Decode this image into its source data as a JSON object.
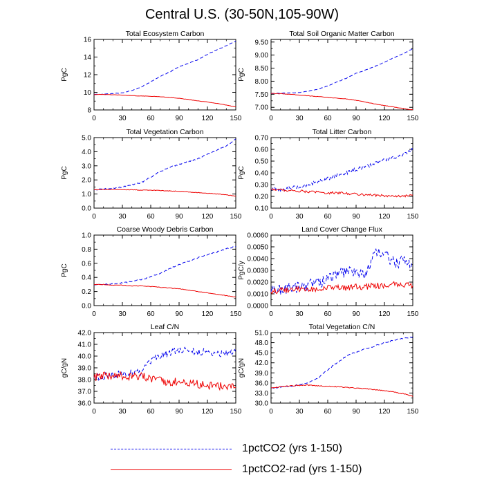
{
  "title": "Central U.S. (30-50N,105-90W)",
  "colors": {
    "series1": "#0000ee",
    "series2": "#ee0000"
  },
  "legend": [
    {
      "label": "1pctCO2 (yrs 1-150)",
      "style": "dashed",
      "color": "#0000ee"
    },
    {
      "label": "1pctCO2-rad (yrs 1-150)",
      "style": "solid",
      "color": "#ee0000"
    }
  ],
  "chart_data": [
    {
      "type": "line",
      "title": "Total Ecosystem Carbon",
      "ylabel": "PgC",
      "xlim": [
        0,
        150
      ],
      "ylim": [
        8,
        16
      ],
      "xticks": [
        "0",
        "30",
        "60",
        "90",
        "120",
        "150"
      ],
      "yticks": [
        "8",
        "10",
        "12",
        "14",
        "16"
      ],
      "series": [
        {
          "name": "1pctCO2 (yrs 1-150)",
          "x": [
            0,
            10,
            20,
            30,
            40,
            50,
            60,
            70,
            80,
            90,
            100,
            110,
            120,
            130,
            140,
            150
          ],
          "y": [
            9.75,
            9.8,
            9.85,
            9.95,
            10.2,
            10.6,
            11.2,
            11.8,
            12.3,
            12.9,
            13.3,
            13.7,
            14.3,
            14.8,
            15.3,
            15.8
          ],
          "noise": 0.03
        },
        {
          "name": "1pctCO2-rad (yrs 1-150)",
          "x": [
            0,
            10,
            20,
            30,
            40,
            50,
            60,
            70,
            80,
            90,
            100,
            110,
            120,
            130,
            140,
            150
          ],
          "y": [
            9.75,
            9.75,
            9.72,
            9.68,
            9.62,
            9.58,
            9.55,
            9.5,
            9.42,
            9.32,
            9.18,
            9.02,
            8.9,
            8.75,
            8.55,
            8.35
          ],
          "noise": 0.02
        }
      ]
    },
    {
      "type": "line",
      "title": "Total Soil Organic Matter Carbon",
      "ylabel": "PgC",
      "xlim": [
        0,
        150
      ],
      "ylim": [
        6.9,
        9.6
      ],
      "xticks": [
        "0",
        "30",
        "60",
        "90",
        "120",
        "150"
      ],
      "yticks": [
        "7.00",
        "7.50",
        "8.00",
        "8.50",
        "9.00",
        "9.50"
      ],
      "series": [
        {
          "name": "1pctCO2 (yrs 1-150)",
          "x": [
            0,
            10,
            20,
            30,
            40,
            50,
            60,
            70,
            80,
            90,
            100,
            110,
            120,
            130,
            140,
            150
          ],
          "y": [
            7.53,
            7.54,
            7.55,
            7.57,
            7.62,
            7.7,
            7.82,
            7.97,
            8.12,
            8.3,
            8.43,
            8.57,
            8.72,
            8.9,
            9.05,
            9.25
          ],
          "noise": 0.01
        },
        {
          "name": "1pctCO2-rad (yrs 1-150)",
          "x": [
            0,
            10,
            20,
            30,
            40,
            50,
            60,
            70,
            80,
            90,
            100,
            110,
            120,
            130,
            140,
            150
          ],
          "y": [
            7.53,
            7.52,
            7.5,
            7.47,
            7.44,
            7.41,
            7.38,
            7.35,
            7.32,
            7.27,
            7.2,
            7.13,
            7.07,
            7.01,
            6.95,
            6.9
          ],
          "noise": 0.008
        }
      ]
    },
    {
      "type": "line",
      "title": "Total Vegetation Carbon",
      "ylabel": "PgC",
      "xlim": [
        0,
        150
      ],
      "ylim": [
        0,
        5
      ],
      "xticks": [
        "0",
        "30",
        "60",
        "90",
        "120",
        "150"
      ],
      "yticks": [
        "0.0",
        "1.0",
        "2.0",
        "3.0",
        "4.0",
        "5.0"
      ],
      "series": [
        {
          "name": "1pctCO2 (yrs 1-150)",
          "x": [
            0,
            10,
            20,
            30,
            40,
            50,
            60,
            70,
            80,
            90,
            100,
            110,
            120,
            130,
            140,
            150
          ],
          "y": [
            1.3,
            1.35,
            1.4,
            1.5,
            1.65,
            1.8,
            2.2,
            2.6,
            2.9,
            3.1,
            3.3,
            3.5,
            3.8,
            4.1,
            4.4,
            4.9
          ],
          "noise": 0.04
        },
        {
          "name": "1pctCO2-rad (yrs 1-150)",
          "x": [
            0,
            10,
            20,
            30,
            40,
            50,
            60,
            70,
            80,
            90,
            100,
            110,
            120,
            130,
            140,
            150
          ],
          "y": [
            1.3,
            1.32,
            1.33,
            1.32,
            1.3,
            1.28,
            1.27,
            1.25,
            1.22,
            1.2,
            1.15,
            1.1,
            1.05,
            1.0,
            0.95,
            0.85
          ],
          "noise": 0.02
        }
      ]
    },
    {
      "type": "line",
      "title": "Total Litter Carbon",
      "ylabel": "PgC",
      "xlim": [
        0,
        150
      ],
      "ylim": [
        0.1,
        0.7
      ],
      "xticks": [
        "0",
        "30",
        "60",
        "90",
        "120",
        "150"
      ],
      "yticks": [
        "0.10",
        "0.20",
        "0.30",
        "0.40",
        "0.50",
        "0.60",
        "0.70"
      ],
      "series": [
        {
          "name": "1pctCO2 (yrs 1-150)",
          "x": [
            0,
            10,
            20,
            30,
            40,
            50,
            60,
            70,
            80,
            90,
            100,
            110,
            120,
            130,
            140,
            150
          ],
          "y": [
            0.26,
            0.26,
            0.27,
            0.28,
            0.3,
            0.33,
            0.35,
            0.38,
            0.4,
            0.43,
            0.45,
            0.48,
            0.51,
            0.53,
            0.55,
            0.6
          ],
          "noise": 0.015
        },
        {
          "name": "1pctCO2-rad (yrs 1-150)",
          "x": [
            0,
            10,
            20,
            30,
            40,
            50,
            60,
            70,
            80,
            90,
            100,
            110,
            120,
            130,
            140,
            150
          ],
          "y": [
            0.26,
            0.255,
            0.25,
            0.245,
            0.24,
            0.235,
            0.23,
            0.23,
            0.225,
            0.22,
            0.215,
            0.21,
            0.205,
            0.2,
            0.2,
            0.21
          ],
          "noise": 0.01
        }
      ]
    },
    {
      "type": "line",
      "title": "Coarse Woody Debris Carbon",
      "ylabel": "PgC",
      "xlim": [
        0,
        150
      ],
      "ylim": [
        0,
        1
      ],
      "xticks": [
        "0",
        "30",
        "60",
        "90",
        "120",
        "150"
      ],
      "yticks": [
        "0.0",
        "0.2",
        "0.4",
        "0.6",
        "0.8",
        "1.0"
      ],
      "series": [
        {
          "name": "1pctCO2 (yrs 1-150)",
          "x": [
            0,
            10,
            20,
            30,
            40,
            50,
            60,
            70,
            80,
            90,
            100,
            110,
            120,
            130,
            140,
            150
          ],
          "y": [
            0.3,
            0.3,
            0.31,
            0.32,
            0.34,
            0.37,
            0.41,
            0.46,
            0.52,
            0.58,
            0.63,
            0.68,
            0.72,
            0.76,
            0.81,
            0.84
          ],
          "noise": 0.008
        },
        {
          "name": "1pctCO2-rad (yrs 1-150)",
          "x": [
            0,
            10,
            20,
            30,
            40,
            50,
            60,
            70,
            80,
            90,
            100,
            110,
            120,
            130,
            140,
            150
          ],
          "y": [
            0.3,
            0.3,
            0.29,
            0.29,
            0.28,
            0.28,
            0.27,
            0.26,
            0.25,
            0.24,
            0.22,
            0.2,
            0.18,
            0.16,
            0.14,
            0.12
          ],
          "noise": 0.004
        }
      ]
    },
    {
      "type": "line",
      "title": "Land Cover Change Flux",
      "ylabel": "PgC/y",
      "xlim": [
        0,
        150
      ],
      "ylim": [
        0,
        0.006
      ],
      "xticks": [
        "0",
        "30",
        "60",
        "90",
        "120",
        "150"
      ],
      "yticks": [
        "0.0000",
        "0.0010",
        "0.0020",
        "0.0030",
        "0.0040",
        "0.0050",
        "0.0060"
      ],
      "series": [
        {
          "name": "1pctCO2 (yrs 1-150)",
          "x": [
            0,
            10,
            20,
            30,
            40,
            50,
            60,
            70,
            80,
            90,
            100,
            110,
            120,
            130,
            140,
            150
          ],
          "y": [
            0.0012,
            0.0014,
            0.0015,
            0.0016,
            0.0018,
            0.002,
            0.0022,
            0.0027,
            0.0029,
            0.003,
            0.0026,
            0.0044,
            0.0045,
            0.0036,
            0.0038,
            0.0036
          ],
          "noise": 0.0005
        },
        {
          "name": "1pctCO2-rad (yrs 1-150)",
          "x": [
            0,
            10,
            20,
            30,
            40,
            50,
            60,
            70,
            80,
            90,
            100,
            110,
            120,
            130,
            140,
            150
          ],
          "y": [
            0.0012,
            0.0013,
            0.0013,
            0.0014,
            0.0014,
            0.0014,
            0.0015,
            0.0015,
            0.0015,
            0.0016,
            0.0016,
            0.0017,
            0.0017,
            0.0018,
            0.0018,
            0.0017
          ],
          "noise": 0.00025
        }
      ]
    },
    {
      "type": "line",
      "title": "Leaf C/N",
      "ylabel": "gC/gN",
      "xlim": [
        0,
        150
      ],
      "ylim": [
        36,
        42
      ],
      "xticks": [
        "0",
        "30",
        "60",
        "90",
        "120",
        "150"
      ],
      "yticks": [
        "36.0",
        "37.0",
        "38.0",
        "39.0",
        "40.0",
        "41.0",
        "42.0"
      ],
      "series": [
        {
          "name": "1pctCO2 (yrs 1-150)",
          "x": [
            0,
            10,
            20,
            30,
            40,
            50,
            60,
            70,
            80,
            90,
            100,
            110,
            120,
            130,
            140,
            150
          ],
          "y": [
            38.2,
            38.3,
            38.4,
            38.5,
            38.6,
            38.6,
            39.5,
            40.0,
            40.3,
            40.5,
            40.5,
            40.3,
            40.4,
            40.2,
            40.3,
            40.4
          ],
          "noise": 0.3
        },
        {
          "name": "1pctCO2-rad (yrs 1-150)",
          "x": [
            0,
            10,
            20,
            30,
            40,
            50,
            60,
            70,
            80,
            90,
            100,
            110,
            120,
            130,
            140,
            150
          ],
          "y": [
            38.2,
            38.3,
            38.3,
            38.3,
            38.3,
            38.3,
            38.0,
            37.9,
            37.8,
            37.8,
            37.7,
            37.6,
            37.5,
            37.5,
            37.4,
            37.4
          ],
          "noise": 0.35
        }
      ]
    },
    {
      "type": "line",
      "title": "Total Vegetation C/N",
      "ylabel": "gC/gN",
      "xlim": [
        0,
        150
      ],
      "ylim": [
        30,
        51
      ],
      "xticks": [
        "0",
        "30",
        "60",
        "90",
        "120",
        "150"
      ],
      "yticks": [
        "30.0",
        "33.0",
        "36.0",
        "39.0",
        "42.0",
        "45.0",
        "48.0",
        "51.0"
      ],
      "series": [
        {
          "name": "1pctCO2 (yrs 1-150)",
          "x": [
            0,
            10,
            20,
            30,
            40,
            50,
            60,
            70,
            80,
            90,
            100,
            110,
            120,
            130,
            140,
            150
          ],
          "y": [
            34.5,
            34.8,
            35.0,
            35.5,
            36.2,
            37.5,
            40.0,
            42.0,
            44.0,
            45.2,
            46.2,
            47.0,
            48.0,
            48.8,
            49.3,
            49.8
          ],
          "noise": 0.2
        },
        {
          "name": "1pctCO2-rad (yrs 1-150)",
          "x": [
            0,
            10,
            20,
            30,
            40,
            50,
            60,
            70,
            80,
            90,
            100,
            110,
            120,
            130,
            140,
            150
          ],
          "y": [
            34.5,
            34.9,
            35.1,
            35.3,
            35.3,
            35.2,
            35.0,
            34.9,
            34.7,
            34.5,
            34.3,
            34.0,
            33.7,
            33.3,
            32.8,
            32.0
          ],
          "noise": 0.15
        }
      ]
    }
  ]
}
